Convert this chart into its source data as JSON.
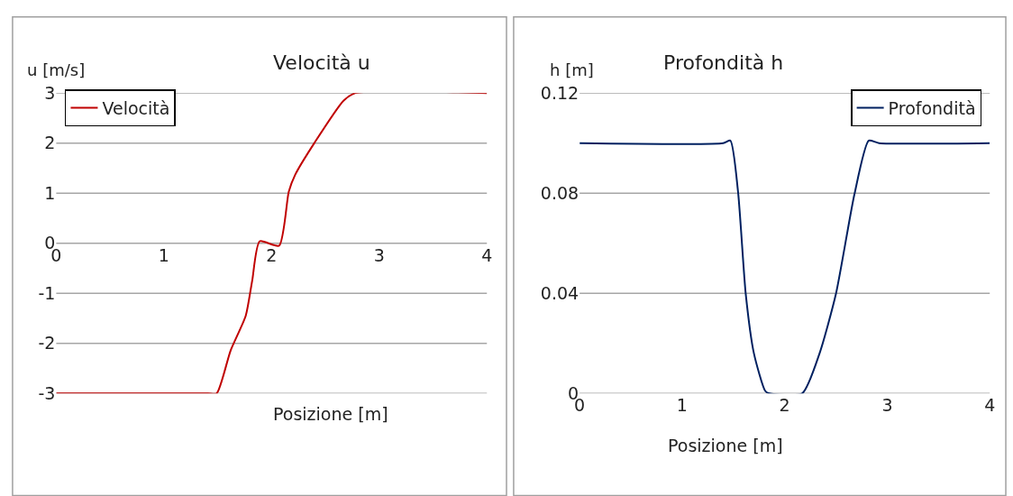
{
  "chart_data": [
    {
      "type": "line",
      "title": "Velocità u",
      "xlabel": "Posizione [m]",
      "ylabel": "u [m/s]",
      "xlim": [
        0,
        4
      ],
      "xticks": [
        0,
        1,
        2,
        3,
        4
      ],
      "ylim": [
        -3,
        3
      ],
      "yticks": [
        -3,
        -2,
        -1,
        0,
        1,
        2,
        3
      ],
      "grid": "y",
      "legend": "top left",
      "marker": "none",
      "line_style": "solid",
      "series": [
        {
          "name": "Velocità",
          "color": "#c00000",
          "x": [
            0,
            1.41,
            1.49,
            1.62,
            1.76,
            1.82,
            1.89,
            2.07,
            2.16,
            2.22,
            2.4,
            2.67,
            2.78,
            4
          ],
          "values": [
            -3,
            -3,
            -3,
            -2.14,
            -1.45,
            -0.75,
            0.04,
            -0.05,
            1.03,
            1.37,
            2.01,
            2.85,
            3,
            3
          ]
        }
      ]
    },
    {
      "type": "line",
      "title": "Profondità h",
      "xlabel": "Posizione [m]",
      "ylabel": "h [m]",
      "xlim": [
        0,
        4
      ],
      "xticks": [
        0,
        1,
        2,
        3,
        4
      ],
      "ylim": [
        0,
        0.12
      ],
      "yticks": [
        0,
        0.04,
        0.08,
        0.12
      ],
      "grid": "y",
      "legend": "top right",
      "marker": "none",
      "line_style": "solid",
      "series": [
        {
          "name": "Profondità",
          "color": "#002060",
          "x": [
            0,
            1.4,
            1.47,
            1.545,
            1.62,
            1.7,
            1.81,
            1.85,
            2.17,
            2.34,
            2.5,
            2.68,
            2.82,
            2.92,
            4
          ],
          "values": [
            0.1,
            0.1,
            0.101,
            0.0806,
            0.0398,
            0.016,
            0.001,
            0,
            0,
            0.016,
            0.0398,
            0.0795,
            0.101,
            0.1,
            0.1
          ]
        }
      ]
    }
  ]
}
